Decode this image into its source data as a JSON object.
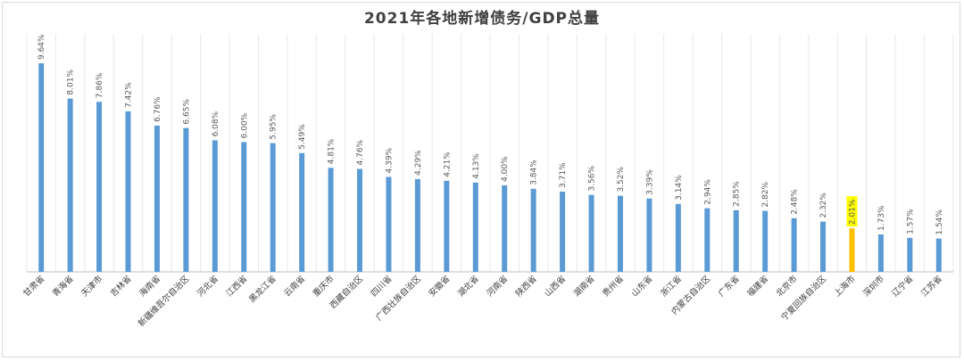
{
  "chart_data": {
    "type": "bar",
    "title": "2021年各地新增债务/GDP总量",
    "categories": [
      "甘肃省",
      "青海省",
      "天津市",
      "吉林省",
      "海南省",
      "新疆维吾尔自治区",
      "河北省",
      "江西省",
      "黑龙江省",
      "云南省",
      "重庆市",
      "西藏自治区",
      "四川省",
      "广西壮族自治区",
      "安徽省",
      "湖北省",
      "河南省",
      "陕西省",
      "山西省",
      "湖南省",
      "贵州省",
      "山东省",
      "浙江省",
      "内蒙古自治区",
      "广东省",
      "福建省",
      "北京市",
      "宁夏回族自治区",
      "上海市",
      "深圳市",
      "辽宁省",
      "江苏省"
    ],
    "values": [
      9.64,
      8.01,
      7.86,
      7.42,
      6.76,
      6.65,
      6.08,
      6.0,
      5.95,
      5.49,
      4.81,
      4.76,
      4.39,
      4.29,
      4.21,
      4.13,
      4.0,
      3.84,
      3.71,
      3.56,
      3.52,
      3.39,
      3.14,
      2.94,
      2.85,
      2.82,
      2.48,
      2.32,
      2.01,
      1.73,
      1.57,
      1.54
    ],
    "labels": [
      "9.64%",
      "8.01%",
      "7.86%",
      "7.42%",
      "6.76%",
      "6.65%",
      "6.08%",
      "6.00%",
      "5.95%",
      "5.49%",
      "4.81%",
      "4.76%",
      "4.39%",
      "4.29%",
      "4.21%",
      "4.13%",
      "4.00%",
      "3.84%",
      "3.71%",
      "3.56%",
      "3.52%",
      "3.39%",
      "3.14%",
      "2.94%",
      "2.85%",
      "2.82%",
      "2.48%",
      "2.32%",
      "2.01%",
      "1.73%",
      "1.57%",
      "1.54%"
    ],
    "highlight_category": "上海市",
    "ylim": [
      0,
      11
    ],
    "grid": true,
    "colors": {
      "bar": "#5b9bd5",
      "highlight": "#ffc000",
      "highlight_label_bg": "#ffff00"
    }
  }
}
